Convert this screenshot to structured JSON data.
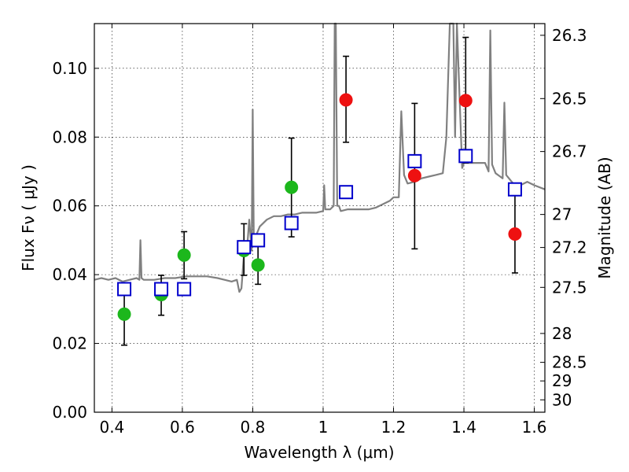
{
  "chart_data": {
    "type": "scatter",
    "xlabel": "Wavelength  λ (μm)",
    "ylabel": "Flux  Fν  ( μJy )",
    "ylabel_right": "Magnitude (AB)",
    "xlim": [
      0.35,
      1.63
    ],
    "ylim": [
      0.0,
      0.113
    ],
    "grid": true,
    "x_ticks": [
      0.4,
      0.6,
      0.8,
      1.0,
      1.2,
      1.4,
      1.6
    ],
    "x_tick_labels": [
      "0.4",
      "0.6",
      "0.8",
      "1",
      "1.2",
      "1.4",
      "1.6"
    ],
    "y_ticks": [
      0.0,
      0.02,
      0.04,
      0.06,
      0.08,
      0.1
    ],
    "y_tick_labels": [
      "0.00",
      "0.02",
      "0.04",
      "0.06",
      "0.08",
      "0.10"
    ],
    "right_ticks": [
      {
        "label": "26.3",
        "flux": 0.1096
      },
      {
        "label": "26.5",
        "flux": 0.0912
      },
      {
        "label": "26.7",
        "flux": 0.0758
      },
      {
        "label": "27",
        "flux": 0.0575
      },
      {
        "label": "27.2",
        "flux": 0.0479
      },
      {
        "label": "27.5",
        "flux": 0.0363
      },
      {
        "label": "28",
        "flux": 0.0229
      },
      {
        "label": "28.5",
        "flux": 0.0145
      },
      {
        "label": "29",
        "flux": 0.0091
      },
      {
        "label": "30",
        "flux": 0.0036
      }
    ],
    "series": [
      {
        "name": "model spectrum",
        "kind": "line",
        "color": "#808080",
        "x": [
          0.35,
          0.37,
          0.39,
          0.41,
          0.43,
          0.45,
          0.47,
          0.478,
          0.481,
          0.484,
          0.49,
          0.52,
          0.55,
          0.58,
          0.61,
          0.64,
          0.67,
          0.7,
          0.72,
          0.74,
          0.755,
          0.762,
          0.768,
          0.775,
          0.782,
          0.785,
          0.79,
          0.797,
          0.8,
          0.803,
          0.808,
          0.82,
          0.84,
          0.86,
          0.88,
          0.9,
          0.92,
          0.94,
          0.96,
          0.98,
          1.0,
          1.003,
          1.006,
          1.02,
          1.03,
          1.033,
          1.036,
          1.04,
          1.045,
          1.05,
          1.07,
          1.09,
          1.11,
          1.13,
          1.15,
          1.17,
          1.19,
          1.2,
          1.215,
          1.222,
          1.23,
          1.24,
          1.26,
          1.28,
          1.3,
          1.32,
          1.34,
          1.35,
          1.36,
          1.37,
          1.375,
          1.38,
          1.395,
          1.4,
          1.43,
          1.46,
          1.47,
          1.475,
          1.48,
          1.49,
          1.51,
          1.515,
          1.52,
          1.54,
          1.56,
          1.58,
          1.6,
          1.63
        ],
        "y": [
          0.0385,
          0.039,
          0.0385,
          0.039,
          0.038,
          0.0385,
          0.039,
          0.0385,
          0.05,
          0.039,
          0.0385,
          0.0385,
          0.039,
          0.039,
          0.0395,
          0.0395,
          0.0395,
          0.039,
          0.0385,
          0.038,
          0.0385,
          0.035,
          0.036,
          0.046,
          0.048,
          0.049,
          0.056,
          0.047,
          0.088,
          0.05,
          0.051,
          0.054,
          0.056,
          0.057,
          0.057,
          0.0575,
          0.0575,
          0.058,
          0.058,
          0.058,
          0.0585,
          0.066,
          0.059,
          0.059,
          0.06,
          0.113,
          0.113,
          0.06,
          0.06,
          0.0585,
          0.059,
          0.059,
          0.059,
          0.059,
          0.0595,
          0.0605,
          0.0615,
          0.0625,
          0.0625,
          0.0875,
          0.069,
          0.0665,
          0.067,
          0.068,
          0.0685,
          0.069,
          0.0695,
          0.08,
          0.113,
          0.113,
          0.08,
          0.113,
          0.071,
          0.0725,
          0.0725,
          0.0725,
          0.07,
          0.111,
          0.072,
          0.0695,
          0.068,
          0.09,
          0.069,
          0.0665,
          0.066,
          0.067,
          0.066,
          0.0648
        ]
      },
      {
        "name": "green measurements",
        "kind": "points",
        "color": "#1cb71c",
        "points": [
          {
            "x": 0.435,
            "y": 0.0285,
            "err_low": 0.0195,
            "err_high": 0.0362
          },
          {
            "x": 0.54,
            "y": 0.0342,
            "err_low": 0.0282,
            "err_high": 0.0398
          },
          {
            "x": 0.605,
            "y": 0.0457,
            "err_low": 0.0388,
            "err_high": 0.0525
          },
          {
            "x": 0.775,
            "y": 0.047,
            "err_low": 0.0398,
            "err_high": 0.0548
          },
          {
            "x": 0.815,
            "y": 0.0428,
            "err_low": 0.0372,
            "err_high": 0.0482
          },
          {
            "x": 0.91,
            "y": 0.0654,
            "err_low": 0.051,
            "err_high": 0.0797
          }
        ]
      },
      {
        "name": "red measurements",
        "kind": "points",
        "color": "#ee1111",
        "points": [
          {
            "x": 1.065,
            "y": 0.0908,
            "err_low": 0.0785,
            "err_high": 0.1035
          },
          {
            "x": 1.26,
            "y": 0.0688,
            "err_low": 0.0475,
            "err_high": 0.0898
          },
          {
            "x": 1.405,
            "y": 0.0906,
            "err_low": 0.0725,
            "err_high": 0.109
          },
          {
            "x": 1.545,
            "y": 0.0518,
            "err_low": 0.0405,
            "err_high": 0.0632
          }
        ]
      },
      {
        "name": "model photometry",
        "kind": "squares",
        "color": "#0000cc",
        "points": [
          {
            "x": 0.435,
            "y": 0.0358
          },
          {
            "x": 0.54,
            "y": 0.0358
          },
          {
            "x": 0.605,
            "y": 0.0358
          },
          {
            "x": 0.775,
            "y": 0.048
          },
          {
            "x": 0.815,
            "y": 0.05
          },
          {
            "x": 0.91,
            "y": 0.055
          },
          {
            "x": 1.065,
            "y": 0.064
          },
          {
            "x": 1.26,
            "y": 0.073
          },
          {
            "x": 1.405,
            "y": 0.0745
          },
          {
            "x": 1.545,
            "y": 0.0648
          }
        ]
      }
    ]
  }
}
